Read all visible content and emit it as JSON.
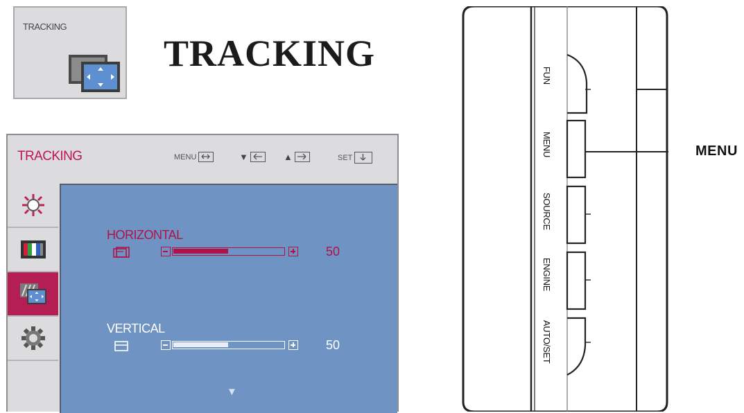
{
  "icon_box": {
    "label": "TRACKING"
  },
  "page_title": "TRACKING",
  "osd": {
    "title": "TRACKING",
    "nav": {
      "menu": "MENU",
      "set": "SET"
    },
    "sidebar": [
      "brightness-icon",
      "color-bars-icon",
      "tracking-icon",
      "settings-gear-icon"
    ],
    "active_index": 2,
    "params": [
      {
        "label": "HORIZONTAL",
        "value": "50",
        "level": 0.5
      },
      {
        "label": "VERTICAL",
        "value": "50",
        "level": 0.5
      }
    ],
    "scroll_arrow": "▼"
  },
  "panel": {
    "buttons": [
      {
        "label": "FUN"
      },
      {
        "label": "MENU"
      },
      {
        "label": "SOURCE"
      },
      {
        "label": "ENGINE"
      },
      {
        "label": "AUTO/SET"
      }
    ],
    "callout": "MENU"
  },
  "colors": {
    "accent": "#b41e52",
    "panel_blue": "#6f94c3",
    "frame_grey": "#dcdcdf"
  }
}
